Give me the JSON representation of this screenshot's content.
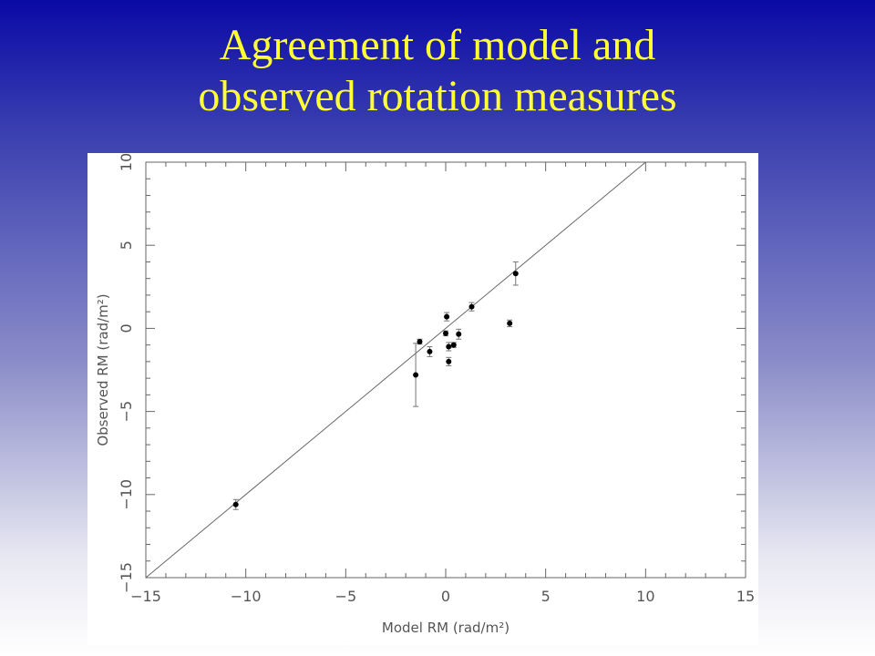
{
  "slide": {
    "title_line1": "Agreement of model and",
    "title_line2": "observed rotation measures"
  },
  "chart_data": {
    "type": "scatter",
    "xlabel": "Model RM (rad/m²)",
    "ylabel": "Observed RM (rad/m²)",
    "xlim": [
      -15,
      15
    ],
    "ylim": [
      -15,
      10
    ],
    "x_ticks": [
      -15,
      -10,
      -5,
      0,
      5,
      10,
      15
    ],
    "y_ticks": [
      -15,
      -10,
      -5,
      0,
      5,
      10
    ],
    "x_tick_labels": [
      "−15",
      "−10",
      "−5",
      "0",
      "5",
      "10",
      "15"
    ],
    "y_tick_labels": [
      "−15",
      "−10",
      "−5",
      "0",
      "5",
      "10"
    ],
    "reference_line": "y = x",
    "grid": false,
    "points": [
      {
        "x": -10.5,
        "y": -10.6,
        "err": 0.3
      },
      {
        "x": -1.5,
        "y": -2.8,
        "err": 1.9
      },
      {
        "x": -1.3,
        "y": -0.8,
        "err": 0.15
      },
      {
        "x": -0.8,
        "y": -1.4,
        "err": 0.3
      },
      {
        "x": 0.0,
        "y": -0.3,
        "err": 0.15
      },
      {
        "x": 0.05,
        "y": 0.7,
        "err": 0.25
      },
      {
        "x": 0.15,
        "y": -1.1,
        "err": 0.25
      },
      {
        "x": 0.15,
        "y": -2.0,
        "err": 0.25
      },
      {
        "x": 0.4,
        "y": -1.0,
        "err": 0.15
      },
      {
        "x": 0.65,
        "y": -0.35,
        "err": 0.3
      },
      {
        "x": 1.3,
        "y": 1.3,
        "err": 0.25
      },
      {
        "x": 3.2,
        "y": 0.3,
        "err": 0.2
      },
      {
        "x": 3.5,
        "y": 3.3,
        "err": 0.7
      }
    ]
  }
}
